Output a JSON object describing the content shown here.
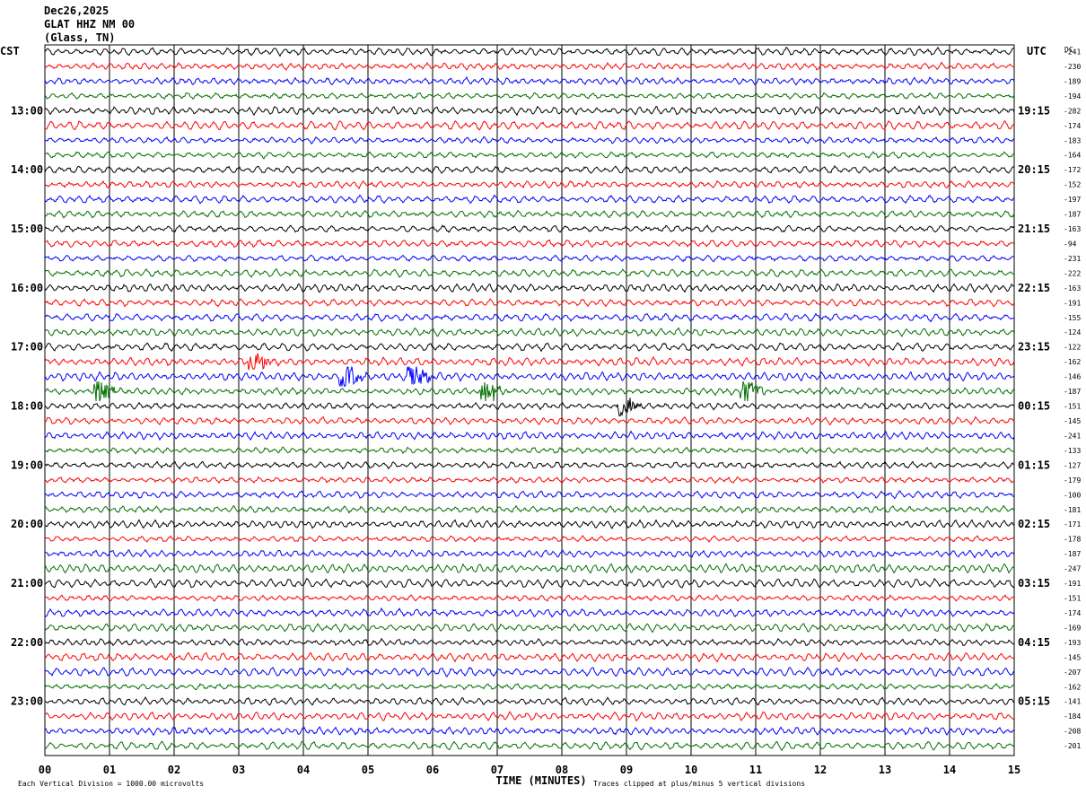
{
  "header": {
    "date": "Dec26,2025",
    "station": "GLAT HHZ NM 00",
    "location": "(Glass, TN)"
  },
  "chart_data": {
    "type": "line",
    "title": "",
    "left_axis_label": "CST",
    "right_axis_label": "UTC",
    "dc_label": "DC",
    "xlabel": "TIME (MINUTES)",
    "xlim": [
      0,
      15
    ],
    "x_ticks": [
      "00",
      "01",
      "02",
      "03",
      "04",
      "05",
      "06",
      "07",
      "08",
      "09",
      "10",
      "11",
      "12",
      "13",
      "14",
      "15"
    ],
    "left_hour_labels": [
      "13:00",
      "14:00",
      "15:00",
      "16:00",
      "17:00",
      "18:00",
      "19:00",
      "20:00",
      "21:00",
      "22:00",
      "23:00"
    ],
    "right_hour_labels": [
      "19:15",
      "20:15",
      "21:15",
      "22:15",
      "23:15",
      "00:15",
      "01:15",
      "02:15",
      "03:15",
      "04:15",
      "05:15"
    ],
    "trace_colors": [
      "#000000",
      "#ff0000",
      "#0000ff",
      "#007000"
    ],
    "dc_offsets": [
      -241,
      -230,
      -189,
      -194,
      -282,
      -174,
      -183,
      -164,
      -172,
      -152,
      -197,
      -187,
      -163,
      -94,
      -231,
      -222,
      -163,
      -191,
      -155,
      -124,
      -122,
      -162,
      -146,
      -187,
      -151,
      -145,
      -241,
      -133,
      -127,
      -179,
      -100,
      -181,
      -171,
      -178,
      -187,
      -247,
      -191,
      -151,
      -174,
      -169,
      -193,
      -145,
      -207,
      -162,
      -141,
      -184,
      -208,
      -201
    ],
    "events": [
      {
        "trace": 21,
        "minute": 3.2
      },
      {
        "trace": 22,
        "minute": 4.6
      },
      {
        "trace": 22,
        "minute": 5.65
      },
      {
        "trace": 23,
        "minute": 0.8
      },
      {
        "trace": 23,
        "minute": 6.8
      },
      {
        "trace": 23,
        "minute": 10.8
      },
      {
        "trace": 24,
        "minute": 8.9
      }
    ],
    "footer_left": "Each Vertical Division = 1000.00 microvolts",
    "footer_right": "Traces clipped at plus/minus 5 vertical divisions"
  }
}
